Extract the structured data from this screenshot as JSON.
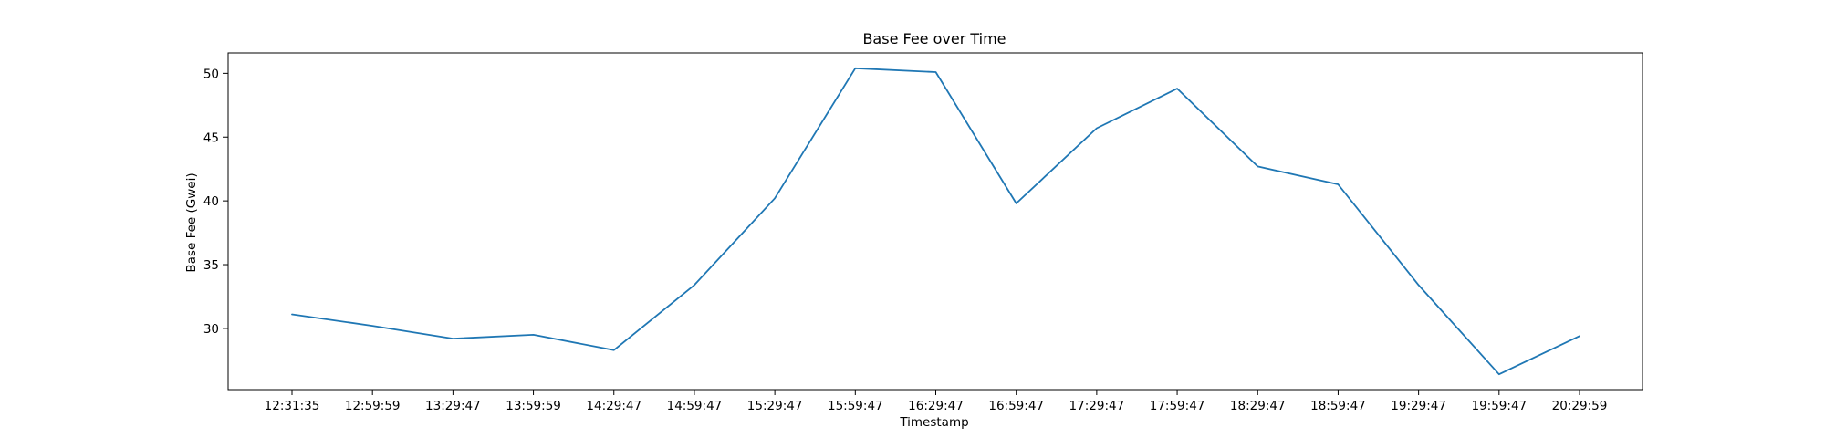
{
  "chart_data": {
    "type": "line",
    "title": "Base Fee over Time",
    "xlabel": "Timestamp",
    "ylabel": "Base Fee (Gwei)",
    "categories": [
      "12:31:35",
      "12:59:59",
      "13:29:47",
      "13:59:59",
      "14:29:47",
      "14:59:47",
      "15:29:47",
      "15:59:47",
      "16:29:47",
      "16:59:47",
      "17:29:47",
      "17:59:47",
      "18:29:47",
      "18:59:47",
      "19:29:47",
      "19:59:47",
      "20:29:59"
    ],
    "series": [
      {
        "values": [
          31.1,
          30.2,
          29.2,
          29.5,
          28.3,
          33.4,
          40.2,
          50.4,
          50.1,
          39.8,
          45.7,
          48.8,
          42.7,
          41.3,
          33.4,
          26.4,
          29.4
        ]
      }
    ],
    "ylim": [
      25.2,
      51.6
    ],
    "yticks": [
      30,
      35,
      40,
      45,
      50
    ],
    "grid": false,
    "line_color": "#1f77b4"
  }
}
